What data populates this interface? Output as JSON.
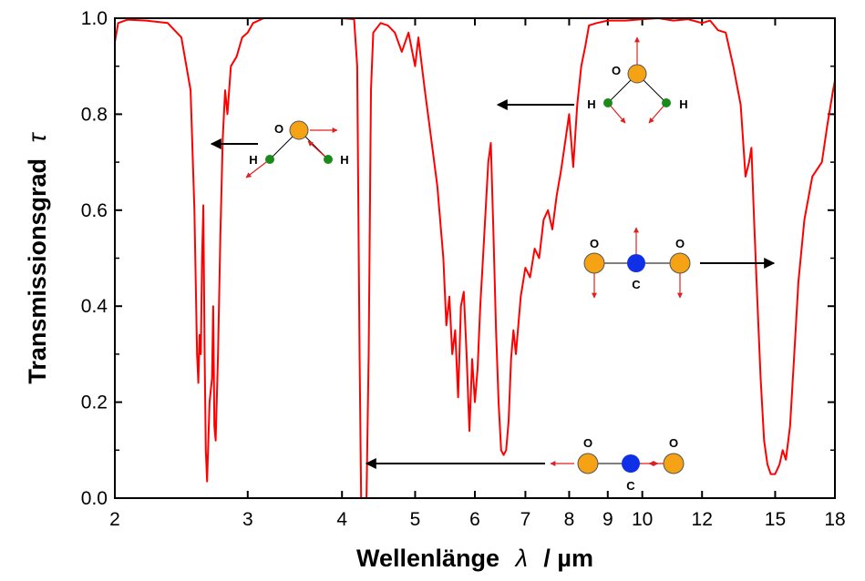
{
  "chart_data": {
    "type": "line",
    "x_scale": "log",
    "xlim": [
      2,
      18
    ],
    "ylim": [
      0,
      1
    ],
    "xlabel_main": "Wellenlänge",
    "xlabel_symbol": "λ",
    "xlabel_unit": "/  µm",
    "ylabel_main": "Transmissionsgrad",
    "ylabel_symbol": "τ",
    "x_ticks": [
      2,
      3,
      4,
      5,
      6,
      7,
      8,
      9,
      10,
      12,
      15,
      18
    ],
    "x_tick_labels": [
      "2",
      "3",
      "4",
      "5",
      "6",
      "7",
      "8",
      "9",
      "10",
      "12",
      "15",
      "18"
    ],
    "y_ticks": [
      0,
      0.2,
      0.4,
      0.6,
      0.8,
      1.0
    ],
    "y_tick_labels": [
      "0.0",
      "0.2",
      "0.4",
      "0.6",
      "0.8",
      "1.0"
    ],
    "grid": false,
    "series": [
      {
        "color": "#ff0000",
        "points": [
          [
            2.0,
            0.95
          ],
          [
            2.02,
            0.99
          ],
          [
            2.08,
            0.997
          ],
          [
            2.2,
            0.995
          ],
          [
            2.35,
            0.99
          ],
          [
            2.45,
            0.96
          ],
          [
            2.52,
            0.85
          ],
          [
            2.55,
            0.6
          ],
          [
            2.57,
            0.3
          ],
          [
            2.58,
            0.24
          ],
          [
            2.59,
            0.34
          ],
          [
            2.6,
            0.3
          ],
          [
            2.61,
            0.5
          ],
          [
            2.62,
            0.61
          ],
          [
            2.63,
            0.3
          ],
          [
            2.64,
            0.1
          ],
          [
            2.65,
            0.035
          ],
          [
            2.67,
            0.2
          ],
          [
            2.69,
            0.25
          ],
          [
            2.7,
            0.4
          ],
          [
            2.71,
            0.15
          ],
          [
            2.72,
            0.12
          ],
          [
            2.74,
            0.3
          ],
          [
            2.76,
            0.55
          ],
          [
            2.78,
            0.75
          ],
          [
            2.8,
            0.85
          ],
          [
            2.82,
            0.8
          ],
          [
            2.85,
            0.9
          ],
          [
            2.9,
            0.92
          ],
          [
            2.95,
            0.96
          ],
          [
            3.0,
            0.97
          ],
          [
            3.05,
            0.99
          ],
          [
            3.15,
            1.0
          ],
          [
            3.5,
            1.0
          ],
          [
            4.0,
            1.0
          ],
          [
            4.15,
            0.998
          ],
          [
            4.19,
            0.9
          ],
          [
            4.22,
            0.3
          ],
          [
            4.24,
            0.0
          ],
          [
            4.31,
            0.0
          ],
          [
            4.34,
            0.3
          ],
          [
            4.37,
            0.85
          ],
          [
            4.4,
            0.97
          ],
          [
            4.5,
            0.99
          ],
          [
            4.6,
            0.985
          ],
          [
            4.7,
            0.97
          ],
          [
            4.8,
            0.93
          ],
          [
            4.9,
            0.97
          ],
          [
            5.0,
            0.9
          ],
          [
            5.05,
            0.96
          ],
          [
            5.15,
            0.85
          ],
          [
            5.25,
            0.75
          ],
          [
            5.35,
            0.65
          ],
          [
            5.45,
            0.5
          ],
          [
            5.5,
            0.36
          ],
          [
            5.55,
            0.42
          ],
          [
            5.6,
            0.3
          ],
          [
            5.65,
            0.35
          ],
          [
            5.7,
            0.21
          ],
          [
            5.75,
            0.4
          ],
          [
            5.8,
            0.43
          ],
          [
            5.85,
            0.3
          ],
          [
            5.9,
            0.14
          ],
          [
            5.95,
            0.29
          ],
          [
            6.0,
            0.2
          ],
          [
            6.05,
            0.27
          ],
          [
            6.1,
            0.4
          ],
          [
            6.15,
            0.5
          ],
          [
            6.2,
            0.6
          ],
          [
            6.25,
            0.7
          ],
          [
            6.3,
            0.74
          ],
          [
            6.35,
            0.55
          ],
          [
            6.4,
            0.35
          ],
          [
            6.45,
            0.2
          ],
          [
            6.5,
            0.1
          ],
          [
            6.55,
            0.09
          ],
          [
            6.6,
            0.1
          ],
          [
            6.65,
            0.16
          ],
          [
            6.7,
            0.29
          ],
          [
            6.75,
            0.35
          ],
          [
            6.8,
            0.3
          ],
          [
            6.9,
            0.42
          ],
          [
            7.0,
            0.48
          ],
          [
            7.1,
            0.46
          ],
          [
            7.2,
            0.52
          ],
          [
            7.3,
            0.5
          ],
          [
            7.4,
            0.58
          ],
          [
            7.5,
            0.6
          ],
          [
            7.6,
            0.56
          ],
          [
            7.7,
            0.63
          ],
          [
            7.8,
            0.68
          ],
          [
            7.9,
            0.74
          ],
          [
            8.0,
            0.8
          ],
          [
            8.1,
            0.69
          ],
          [
            8.2,
            0.82
          ],
          [
            8.3,
            0.9
          ],
          [
            8.4,
            0.94
          ],
          [
            8.5,
            0.985
          ],
          [
            8.7,
            0.99
          ],
          [
            9.0,
            0.995
          ],
          [
            9.5,
            0.995
          ],
          [
            10.0,
            0.998
          ],
          [
            10.5,
            1.0
          ],
          [
            11.0,
            0.995
          ],
          [
            11.5,
            0.998
          ],
          [
            12.0,
            0.99
          ],
          [
            12.3,
            0.995
          ],
          [
            12.6,
            0.975
          ],
          [
            12.9,
            0.97
          ],
          [
            13.2,
            0.9
          ],
          [
            13.5,
            0.82
          ],
          [
            13.7,
            0.67
          ],
          [
            13.85,
            0.7
          ],
          [
            13.95,
            0.73
          ],
          [
            14.05,
            0.6
          ],
          [
            14.2,
            0.42
          ],
          [
            14.35,
            0.25
          ],
          [
            14.5,
            0.12
          ],
          [
            14.65,
            0.07
          ],
          [
            14.8,
            0.05
          ],
          [
            15.0,
            0.05
          ],
          [
            15.2,
            0.07
          ],
          [
            15.35,
            0.1
          ],
          [
            15.5,
            0.08
          ],
          [
            15.7,
            0.15
          ],
          [
            15.9,
            0.3
          ],
          [
            16.1,
            0.45
          ],
          [
            16.4,
            0.58
          ],
          [
            16.8,
            0.67
          ],
          [
            17.3,
            0.7
          ],
          [
            17.6,
            0.78
          ],
          [
            17.9,
            0.85
          ],
          [
            18.0,
            0.87
          ]
        ]
      }
    ]
  },
  "annotations": {
    "atoms": {
      "O": "O",
      "H": "H",
      "C": "C"
    },
    "colors": {
      "oxygen": "#f5a214",
      "hydrogen": "#1a8a1a",
      "carbon": "#1030e8",
      "vector": "#e02020",
      "arrow": "#000000"
    }
  }
}
